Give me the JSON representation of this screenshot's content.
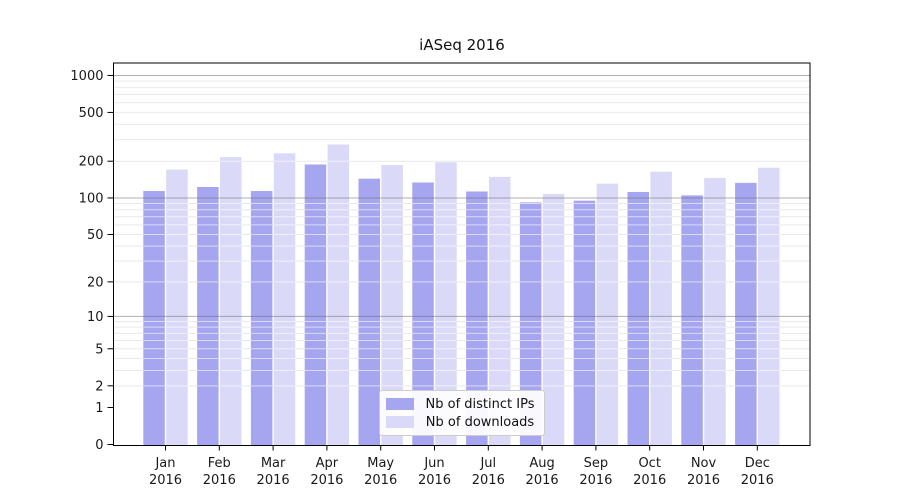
{
  "chart_data": {
    "type": "bar",
    "title": "iASeq 2016",
    "x_year": "2016",
    "categories": [
      "Jan",
      "Feb",
      "Mar",
      "Apr",
      "May",
      "Jun",
      "Jul",
      "Aug",
      "Sep",
      "Oct",
      "Nov",
      "Dec"
    ],
    "series": [
      {
        "name": "Nb of distinct IPs",
        "color": "#a5a5f0",
        "values": [
          114,
          123,
          114,
          188,
          144,
          134,
          113,
          92,
          95,
          112,
          105,
          133
        ]
      },
      {
        "name": "Nb of downloads",
        "color": "#dadaf8",
        "values": [
          171,
          216,
          232,
          274,
          186,
          196,
          149,
          108,
          131,
          164,
          146,
          177
        ]
      }
    ],
    "y_scale": "log1p",
    "y_tick_labels": [
      "1000",
      "500",
      "200",
      "100",
      "50",
      "20",
      "10",
      "5",
      "2",
      "1",
      "0"
    ],
    "y_ticks": [
      1000,
      500,
      200,
      100,
      50,
      20,
      10,
      5,
      2,
      1,
      0
    ],
    "y_minor_gridlines": [
      2,
      3,
      4,
      5,
      6,
      7,
      8,
      9,
      20,
      30,
      40,
      50,
      60,
      70,
      80,
      90,
      200,
      300,
      400,
      500,
      600,
      700,
      800,
      900
    ],
    "y_major_gridlines": [
      10,
      100,
      1000
    ],
    "ylim": [
      0,
      1270
    ],
    "grid": true,
    "legend_position": "lower center",
    "colors": {
      "axis": "#000000",
      "minor_grid": "#e9e9e9",
      "major_grid": "#8c8c8c",
      "text": "#1a1a1a",
      "background": "#ffffff"
    }
  }
}
